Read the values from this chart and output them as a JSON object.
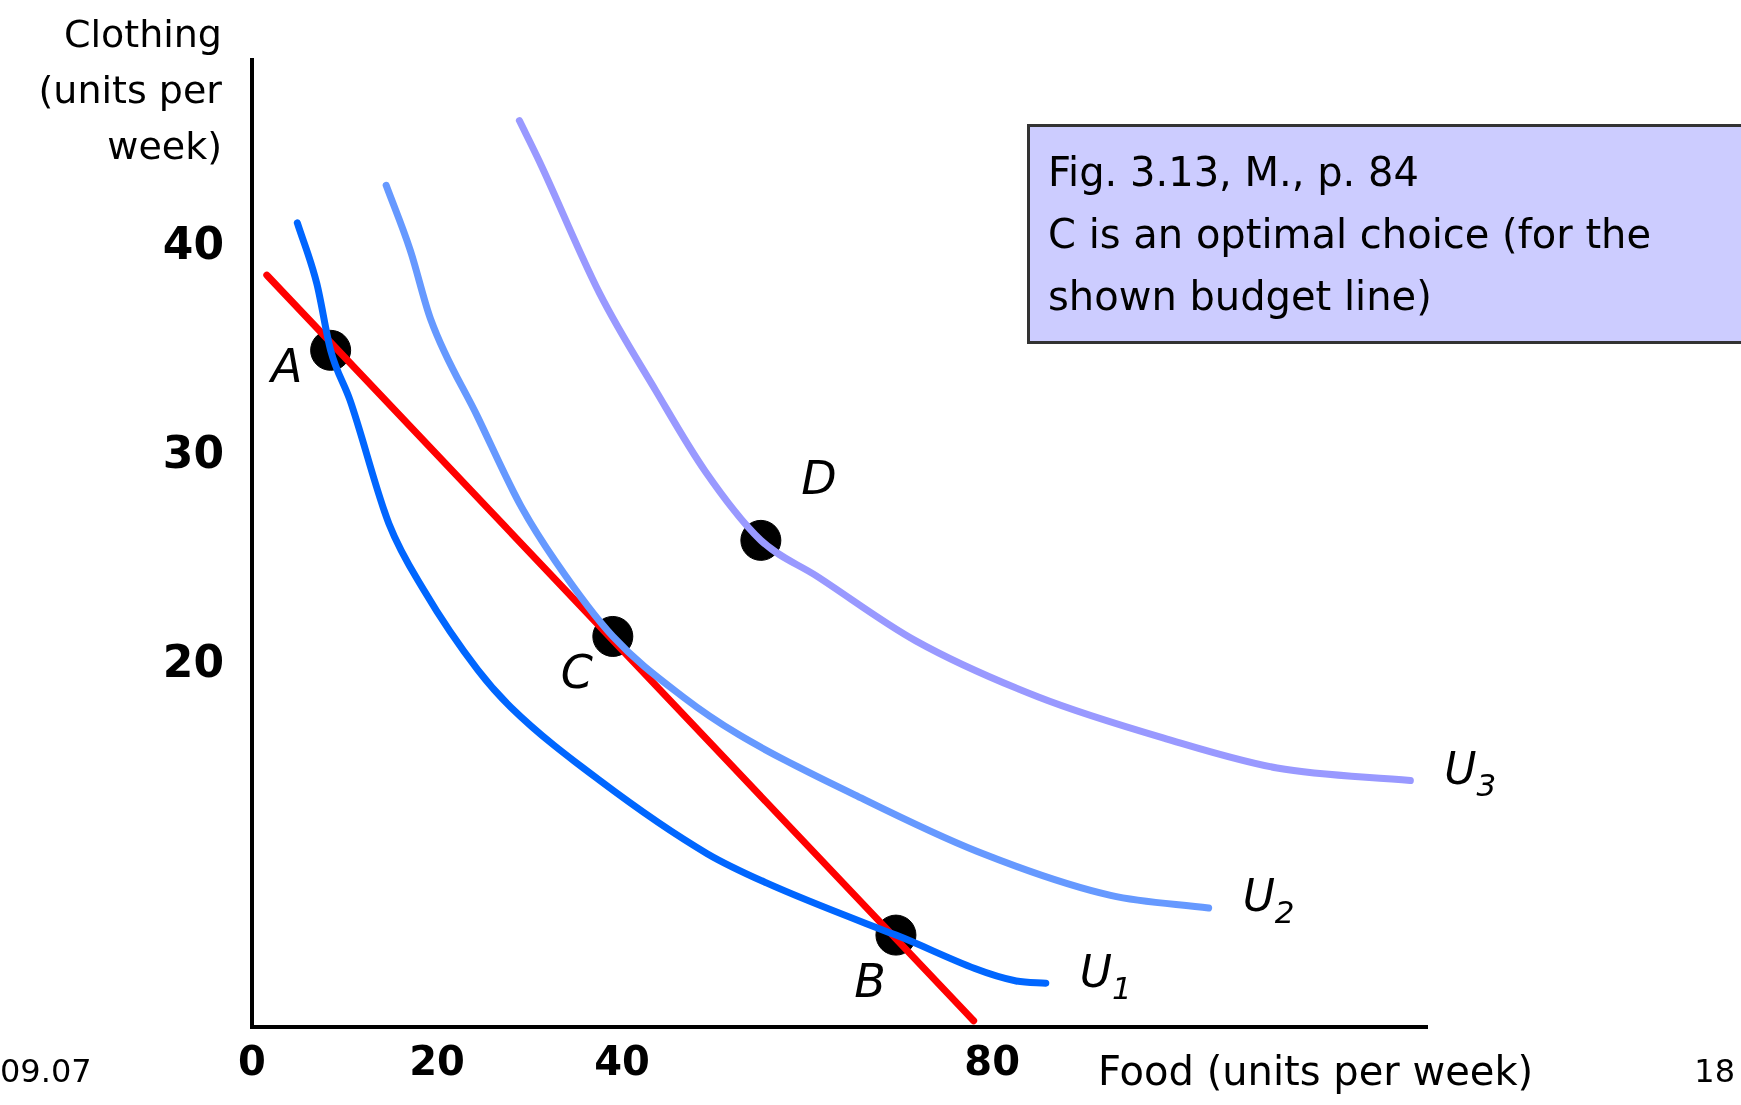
{
  "chart_data": {
    "type": "line",
    "xlabel": "Food (units per week)",
    "ylabel": "Clothing\n(units per\nweek)",
    "xlim": [
      0,
      127
    ],
    "ylim": [
      2.7,
      49
    ],
    "xticks": [
      0,
      20,
      40,
      80
    ],
    "yticks": [
      20,
      30,
      40
    ],
    "series": [
      {
        "name": "U$_{1}$",
        "color": "#0066ff",
        "x": [
          4.9,
          7,
          8.5,
          10.6,
          14.8,
          18.6,
          24.4,
          28,
          37.6,
          49.2,
          55.6,
          69.6,
          82.6,
          85.8
        ],
        "values": [
          41.2,
          38.3,
          35.1,
          32.7,
          26.8,
          23.6,
          19.8,
          18,
          14.5,
          11,
          9.6,
          7.1,
          4.9,
          4.8
        ]
      },
      {
        "name": "U$_{2}$",
        "color": "#6699ff",
        "x": [
          14.5,
          17.1,
          19.3,
          24.4,
          29,
          32.8,
          39,
          46.6,
          52.6,
          65.2,
          78.4,
          92.8,
          103.4
        ],
        "values": [
          43,
          39.9,
          36.6,
          31.9,
          27.7,
          25,
          21.4,
          18.5,
          16.7,
          13.8,
          11.1,
          9,
          8.4
        ]
      },
      {
        "name": "U$_{3}$",
        "color": "#9999ff",
        "x": [
          28.9,
          31,
          37.6,
          43.6,
          49,
          55,
          61,
          71.7,
          85,
          98.8,
          110.8,
          125.2
        ],
        "values": [
          46.1,
          44.2,
          37.8,
          33.2,
          29.3,
          26,
          24.3,
          21.2,
          18.5,
          16.5,
          15.1,
          14.5
        ]
      },
      {
        "color": "#ff0000",
        "x": [
          1.6,
          78
        ],
        "values": [
          38.7,
          3
        ]
      },
      {
        "type": "scatter",
        "color": "#000000",
        "x": [
          8.5,
          39,
          69.6,
          55
        ],
        "values": [
          35.1,
          21.4,
          7.1,
          26
        ]
      }
    ],
    "annotations": [
      "Fig. 3.13, M., p. 84\nC is an optimal choice (for the shown budget line)",
      "09.07",
      "18",
      {
        "text": "A",
        "x": 8.5,
        "y": 35.1
      },
      {
        "text": "C",
        "x": 39,
        "y": 21.4
      },
      {
        "text": "B",
        "x": 69.6,
        "y": 7.1
      },
      {
        "text": "D",
        "x": 55,
        "y": 26
      }
    ]
  }
}
